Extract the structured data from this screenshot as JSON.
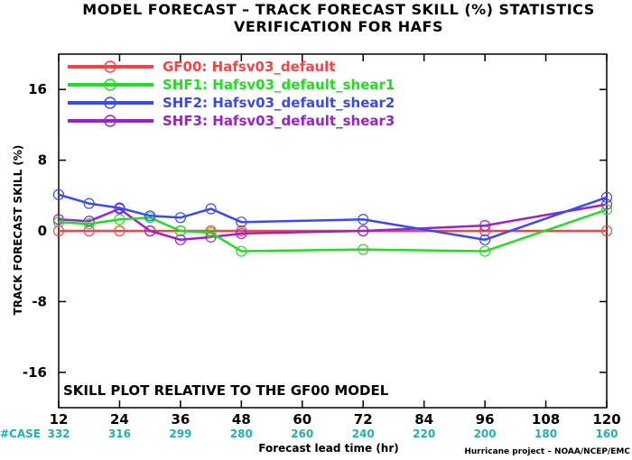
{
  "title_line1": "MODEL FORECAST – TRACK FORECAST SKILL (%) STATISTICS",
  "title_line2": "VERIFICATION FOR HAFS",
  "skill_note": "SKILL PLOT RELATIVE TO THE GF00 MODEL",
  "case_label": "#CASE",
  "credit": "Hurricane project – NOAA/NCEP/EMC",
  "colors": {
    "GF00": "#ff4040",
    "SHF1": "#22dd22",
    "SHF2": "#3a4af0",
    "SHF3": "#9a22c8",
    "case_text": "#20b2aa",
    "zero_line": "#8b1a1a"
  },
  "chart_data": {
    "type": "line",
    "title": "MODEL FORECAST – TRACK FORECAST SKILL (%) STATISTICS",
    "subtitle": "VERIFICATION FOR HAFS",
    "xlabel": "Forecast lead time (hr)",
    "ylabel": "TRACK FORECAST SKILL (%)",
    "xlim": [
      12,
      120
    ],
    "ylim": [
      -20,
      20
    ],
    "x_ticks": [
      12,
      24,
      36,
      48,
      60,
      72,
      84,
      96,
      108,
      120
    ],
    "y_ticks": [
      16,
      8,
      0,
      -8,
      -16
    ],
    "cases": [
      332,
      316,
      299,
      280,
      260,
      240,
      220,
      200,
      180,
      160
    ],
    "grid": false,
    "legend_position": "top-left",
    "series": [
      {
        "name": "GF00: Hafsv03_default",
        "key": "GF00",
        "x": [
          12,
          18,
          24,
          30,
          36,
          42,
          48,
          72,
          96,
          120
        ],
        "y": [
          0,
          0,
          0,
          0,
          0,
          0,
          0,
          0,
          0,
          0
        ]
      },
      {
        "name": "SHF1: Hafsv03_default_shear1",
        "key": "SHF1",
        "x": [
          12,
          18,
          24,
          30,
          36,
          42,
          48,
          72,
          96,
          120
        ],
        "y": [
          1.0,
          0.8,
          1.3,
          1.5,
          0.0,
          -0.2,
          -2.3,
          -2.1,
          -2.3,
          2.4
        ]
      },
      {
        "name": "SHF2: Hafsv03_default_shear2",
        "key": "SHF2",
        "x": [
          12,
          18,
          24,
          30,
          36,
          42,
          48,
          72,
          96,
          120
        ],
        "y": [
          4.1,
          3.1,
          2.6,
          1.7,
          1.5,
          2.5,
          1.0,
          1.3,
          -1.0,
          3.8
        ]
      },
      {
        "name": "SHF3: Hafsv03_default_shear3",
        "key": "SHF3",
        "x": [
          12,
          18,
          24,
          30,
          36,
          42,
          48,
          72,
          96,
          120
        ],
        "y": [
          1.3,
          1.1,
          2.5,
          0.0,
          -1.0,
          -0.7,
          -0.3,
          0.0,
          0.6,
          3.0
        ]
      }
    ]
  }
}
